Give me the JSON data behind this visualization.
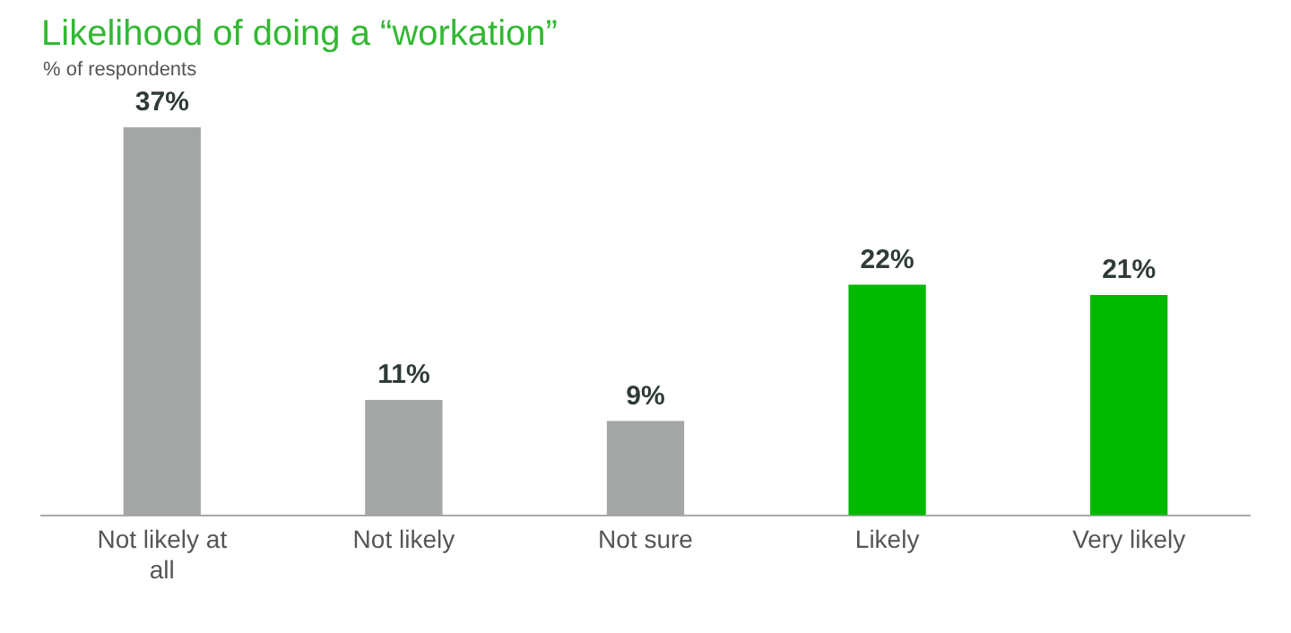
{
  "chart_data": {
    "type": "bar",
    "title": "Likelihood of doing a “workation”",
    "subtitle": "% of respondents",
    "categories": [
      "Not likely at all",
      "Not likely",
      "Not sure",
      "Likely",
      "Very likely"
    ],
    "values": [
      37,
      11,
      9,
      22,
      21
    ],
    "colors": [
      "#a3a6a5",
      "#a3a6a5",
      "#a3a6a5",
      "#00b900",
      "#00b900"
    ],
    "value_labels": [
      "37%",
      "11%",
      "9%",
      "22%",
      "21%"
    ],
    "grid": false,
    "legend": false
  }
}
